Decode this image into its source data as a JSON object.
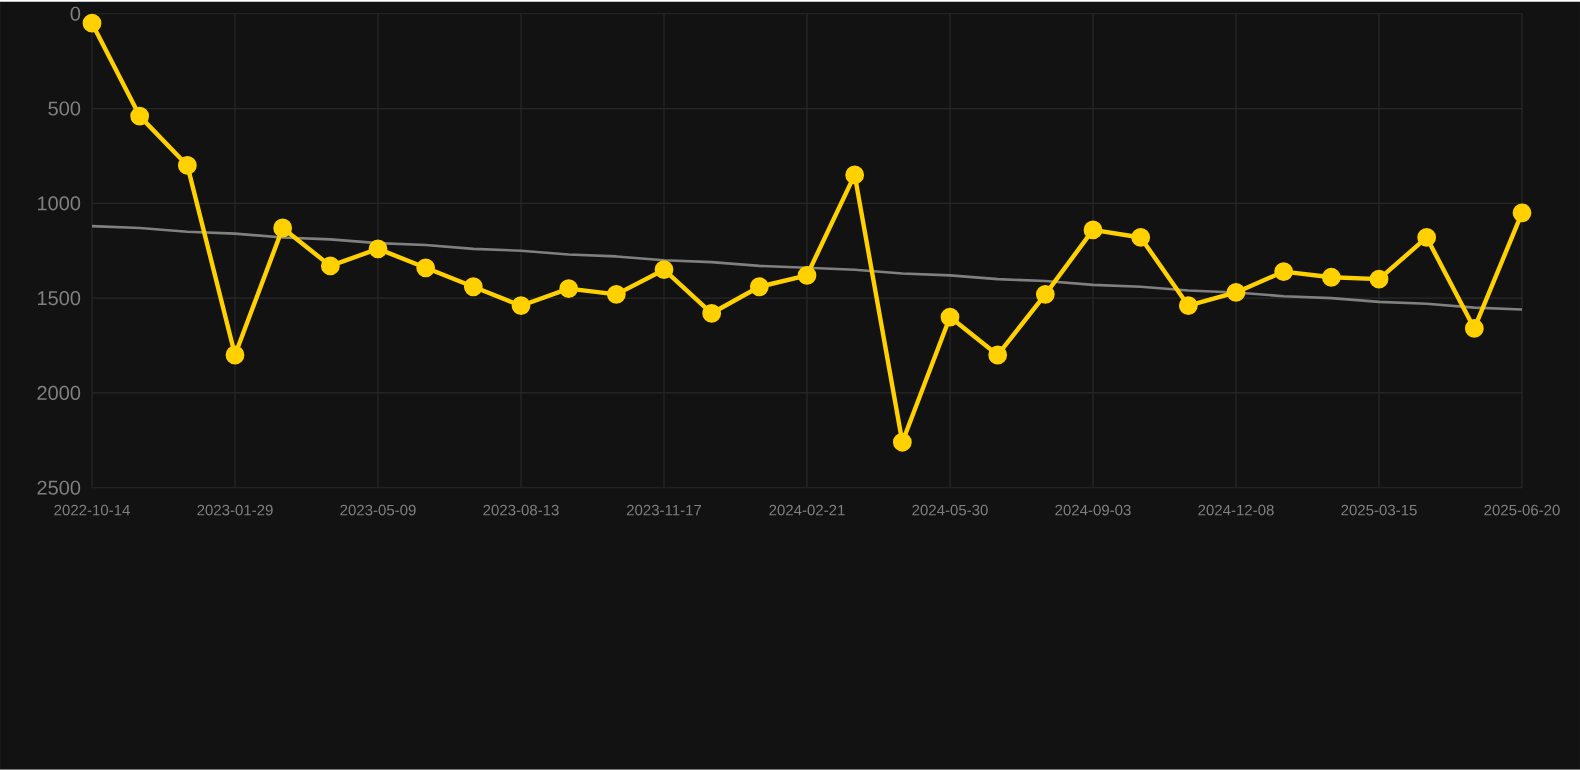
{
  "chart_data": {
    "type": "line",
    "categories": [
      "2022-10-14",
      null,
      null,
      "2023-01-29",
      null,
      null,
      "2023-05-09",
      null,
      null,
      "2023-08-13",
      null,
      null,
      "2023-11-17",
      null,
      null,
      "2024-02-21",
      null,
      null,
      "2024-05-30",
      null,
      null,
      "2024-09-03",
      null,
      null,
      "2024-12-08",
      null,
      null,
      "2025-03-15",
      null,
      null,
      "2025-06-20"
    ],
    "series": [
      {
        "color": "#ffd100",
        "values": [
          50,
          540,
          800,
          1800,
          1130,
          1330,
          1240,
          1340,
          1440,
          1540,
          1450,
          1480,
          1350,
          1580,
          1440,
          1380,
          850,
          2260,
          1600,
          1800,
          1480,
          1140,
          1180,
          1540,
          1470,
          1360,
          1390,
          1400,
          1180,
          1660,
          1050
        ]
      },
      {
        "type": "line",
        "color": "#808080",
        "marker": "none",
        "values": [
          1120,
          1130,
          1150,
          1160,
          1180,
          1190,
          1210,
          1220,
          1240,
          1250,
          1270,
          1280,
          1300,
          1310,
          1330,
          1340,
          1350,
          1370,
          1380,
          1400,
          1410,
          1430,
          1440,
          1460,
          1470,
          1490,
          1500,
          1520,
          1530,
          1550,
          1560
        ]
      }
    ],
    "ylim": [
      2500,
      0
    ],
    "yticks": [
      0,
      500,
      1000,
      1500,
      2000,
      2500
    ],
    "grid": true,
    "marker": "circle",
    "line_style": "solid"
  }
}
